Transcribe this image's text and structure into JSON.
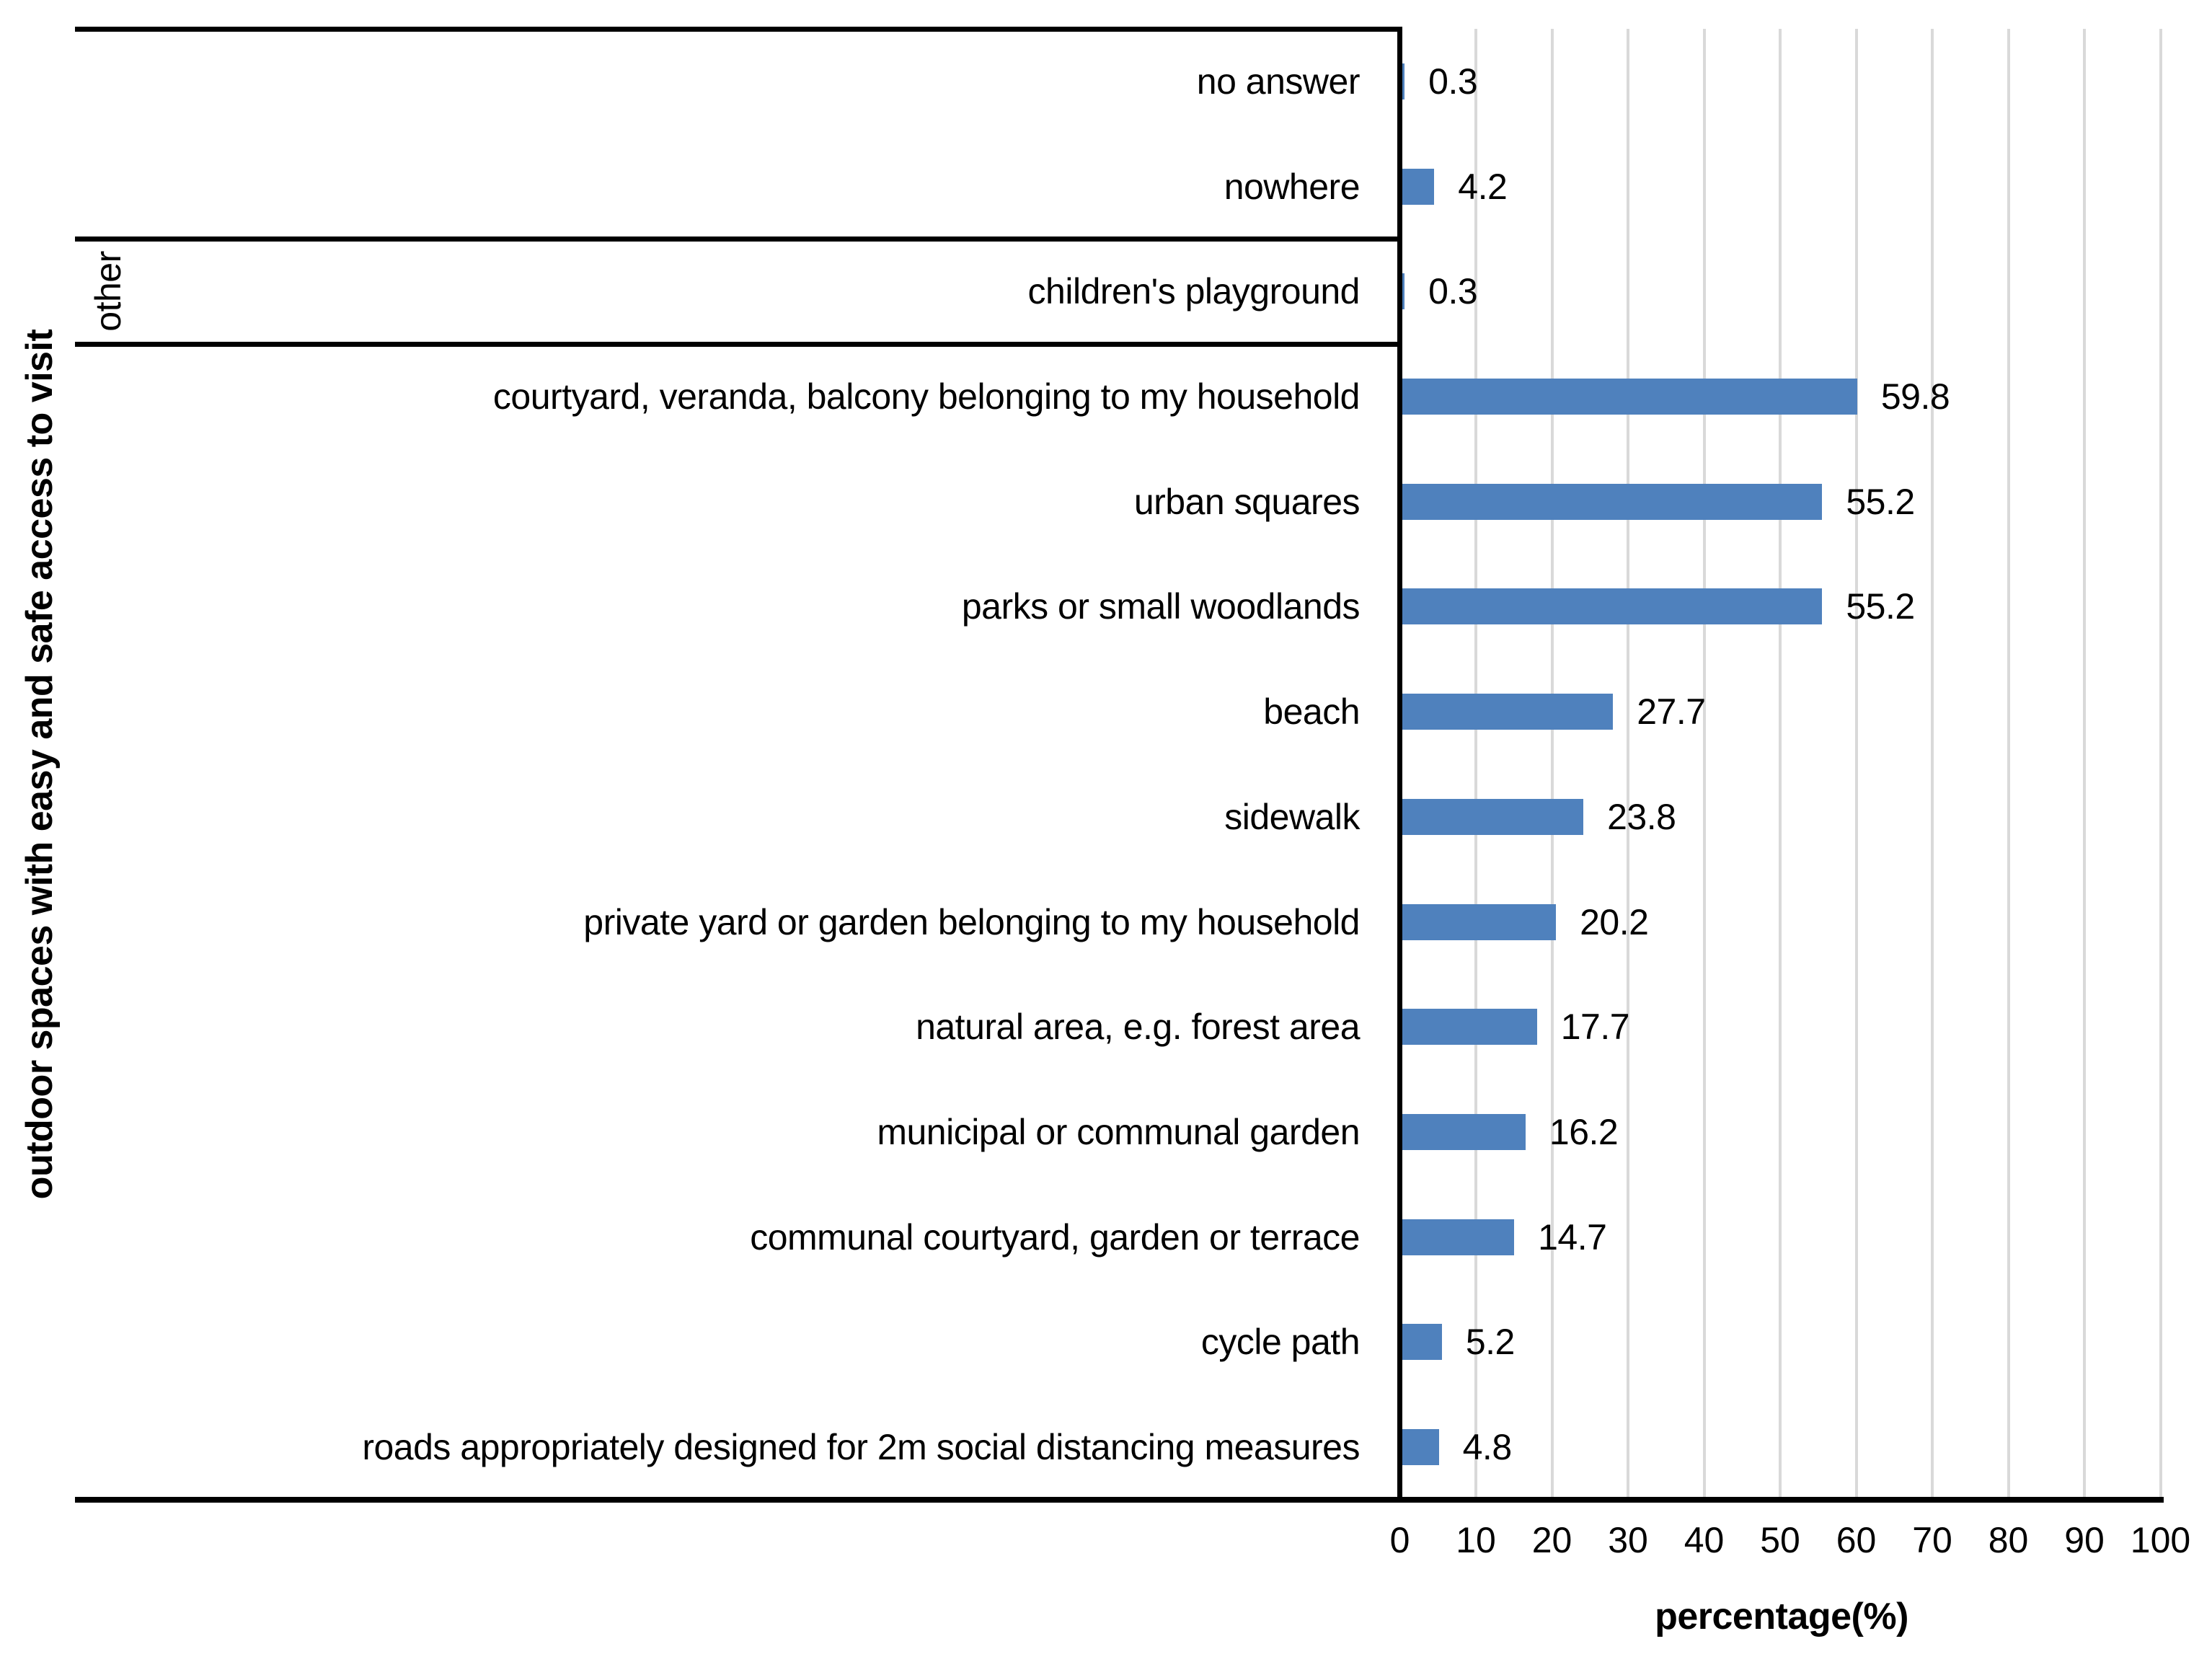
{
  "chart_data": {
    "type": "bar",
    "orientation": "horizontal",
    "title": "",
    "xlabel": "percentage(%)",
    "ylabel": "outdoor spaces with easy and safe access to visit",
    "categories": [
      "no answer",
      "nowhere",
      "children's playground",
      "courtyard, veranda, balcony belonging to my household",
      "urban squares",
      "parks or small woodlands",
      "beach",
      "sidewalk",
      "private yard or garden belonging to my household",
      "natural area, e.g. forest area",
      "municipal or communal garden",
      "communal courtyard, garden or terrace",
      "cycle path",
      "roads appropriately designed for 2m social distancing measures"
    ],
    "values": [
      0.3,
      4.2,
      0.3,
      59.8,
      55.2,
      55.2,
      27.7,
      23.8,
      20.2,
      17.7,
      16.2,
      14.7,
      5.2,
      4.8
    ],
    "value_labels": [
      "0.3",
      "4.2",
      "0.3",
      "59.8",
      "55.2",
      "55.2",
      "27.7",
      "23.8",
      "20.2",
      "17.7",
      "16.2",
      "14.7",
      "5.2",
      "4.8"
    ],
    "xlim": [
      0,
      100
    ],
    "xticks": [
      0,
      10,
      20,
      30,
      40,
      50,
      60,
      70,
      80,
      90,
      100
    ],
    "grid": true,
    "legend": "none",
    "groups": [
      {
        "label": "",
        "start": 0,
        "end": 1
      },
      {
        "label": "other",
        "start": 2,
        "end": 2
      },
      {
        "label": "",
        "start": 3,
        "end": 13
      }
    ],
    "colors": {
      "bar": "#4F81BD",
      "gridline": "#D9D9D9",
      "axis": "#000000",
      "text": "#000000",
      "background": "#FFFFFF"
    }
  }
}
